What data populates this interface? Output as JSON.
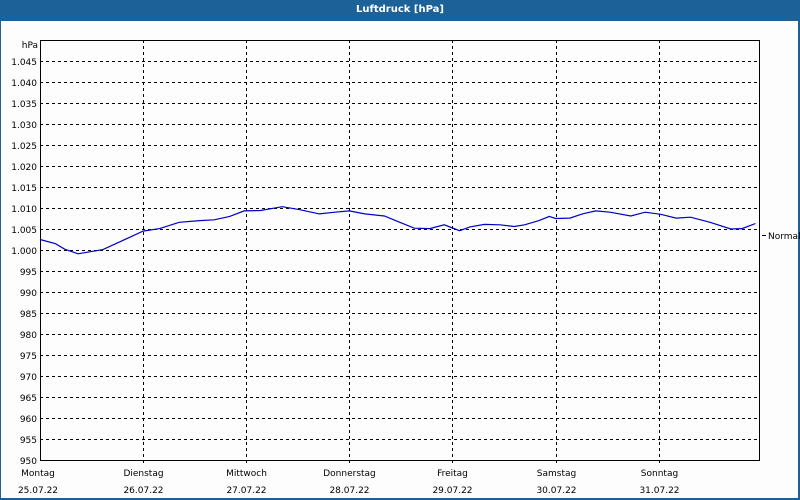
{
  "window": {
    "title": "Luftdruck [hPa]",
    "title_bar_color": "#1c6198"
  },
  "chart_data": {
    "type": "line",
    "title": "Luftdruck [hPa]",
    "ylabel": "hPa",
    "xlabel": "",
    "ylim": [
      950,
      1049
    ],
    "y_ticks": [
      950,
      955,
      960,
      965,
      970,
      975,
      980,
      985,
      990,
      995,
      1000,
      1005,
      1010,
      1015,
      1020,
      1025,
      1030,
      1035,
      1040,
      1045
    ],
    "y_tick_labels": [
      "950",
      "955",
      "960",
      "965",
      "970",
      "975",
      "980",
      "985",
      "990",
      "995",
      "1.000",
      "1.005",
      "1.010",
      "1.015",
      "1.020",
      "1.025",
      "1.030",
      "1.035",
      "1.040",
      "1.045"
    ],
    "x_ticks": [
      {
        "day": "Montag",
        "date": "25.07.22"
      },
      {
        "day": "Dienstag",
        "date": "26.07.22"
      },
      {
        "day": "Mittwoch",
        "date": "27.07.22"
      },
      {
        "day": "Donnerstag",
        "date": "28.07.22"
      },
      {
        "day": "Freitag",
        "date": "29.07.22"
      },
      {
        "day": "Samstag",
        "date": "30.07.22"
      },
      {
        "day": "Sonntag",
        "date": "31.07.22"
      }
    ],
    "grid": true,
    "grid_style": "dashed",
    "reference_marker": {
      "label": "Normal",
      "value": 1003.6
    },
    "line_color": "#0000c8",
    "series": [
      {
        "name": "Luftdruck",
        "x_days": [
          0.0,
          0.15,
          0.24,
          0.37,
          0.49,
          0.61,
          0.78,
          1.0,
          1.16,
          1.35,
          1.55,
          1.69,
          1.84,
          1.98,
          2.14,
          2.35,
          2.52,
          2.71,
          2.86,
          3.0,
          3.15,
          3.34,
          3.49,
          3.63,
          3.78,
          3.92,
          4.07,
          4.17,
          4.31,
          4.46,
          4.6,
          4.7,
          4.84,
          4.94,
          5.0,
          5.14,
          5.26,
          5.39,
          5.53,
          5.73,
          5.87,
          6.02,
          6.17,
          6.31,
          6.5,
          6.7,
          6.81,
          6.94
        ],
        "values": [
          1002.5,
          1001.5,
          1000.2,
          999.1,
          999.6,
          1000.1,
          1002.0,
          1004.5,
          1005.1,
          1006.6,
          1007.0,
          1007.2,
          1008.0,
          1009.3,
          1009.4,
          1010.3,
          1009.6,
          1008.6,
          1009.0,
          1009.3,
          1008.6,
          1008.1,
          1006.6,
          1005.2,
          1005.1,
          1006.0,
          1004.6,
          1005.5,
          1006.1,
          1006.0,
          1005.6,
          1006.0,
          1007.0,
          1008.0,
          1007.5,
          1007.6,
          1008.6,
          1009.3,
          1009.0,
          1008.1,
          1009.0,
          1008.5,
          1007.6,
          1007.8,
          1006.6,
          1005.0,
          1005.1,
          1006.3
        ]
      }
    ]
  }
}
